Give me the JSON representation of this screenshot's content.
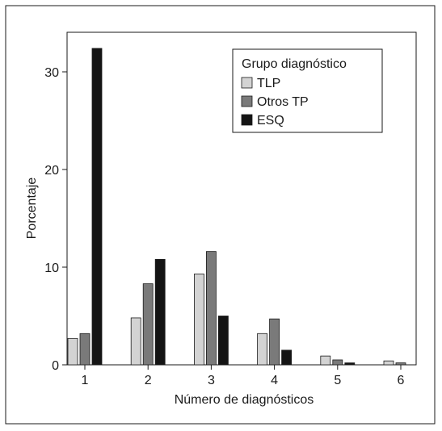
{
  "chart_data": {
    "type": "bar",
    "xlabel": "Número de diagnósticos",
    "ylabel": "Porcentaje",
    "categories": [
      "1",
      "2",
      "3",
      "4",
      "5",
      "6"
    ],
    "ylim": [
      0,
      34.5
    ],
    "yticks": [
      0,
      10,
      20,
      30
    ],
    "legend_title": "Grupo diagnóstico",
    "legend_position": "top-right",
    "grid": false,
    "series": [
      {
        "name": "TLP",
        "color": "#d3d3d3",
        "values": [
          2.7,
          4.8,
          9.3,
          3.2,
          0.9,
          0.4
        ]
      },
      {
        "name": "Otros TP",
        "color": "#7a7a7a",
        "values": [
          3.2,
          8.3,
          11.6,
          4.7,
          0.5,
          0.2
        ]
      },
      {
        "name": "ESQ",
        "color": "#141414",
        "values": [
          32.4,
          10.8,
          5.0,
          1.5,
          0.2,
          0.0
        ]
      }
    ]
  }
}
